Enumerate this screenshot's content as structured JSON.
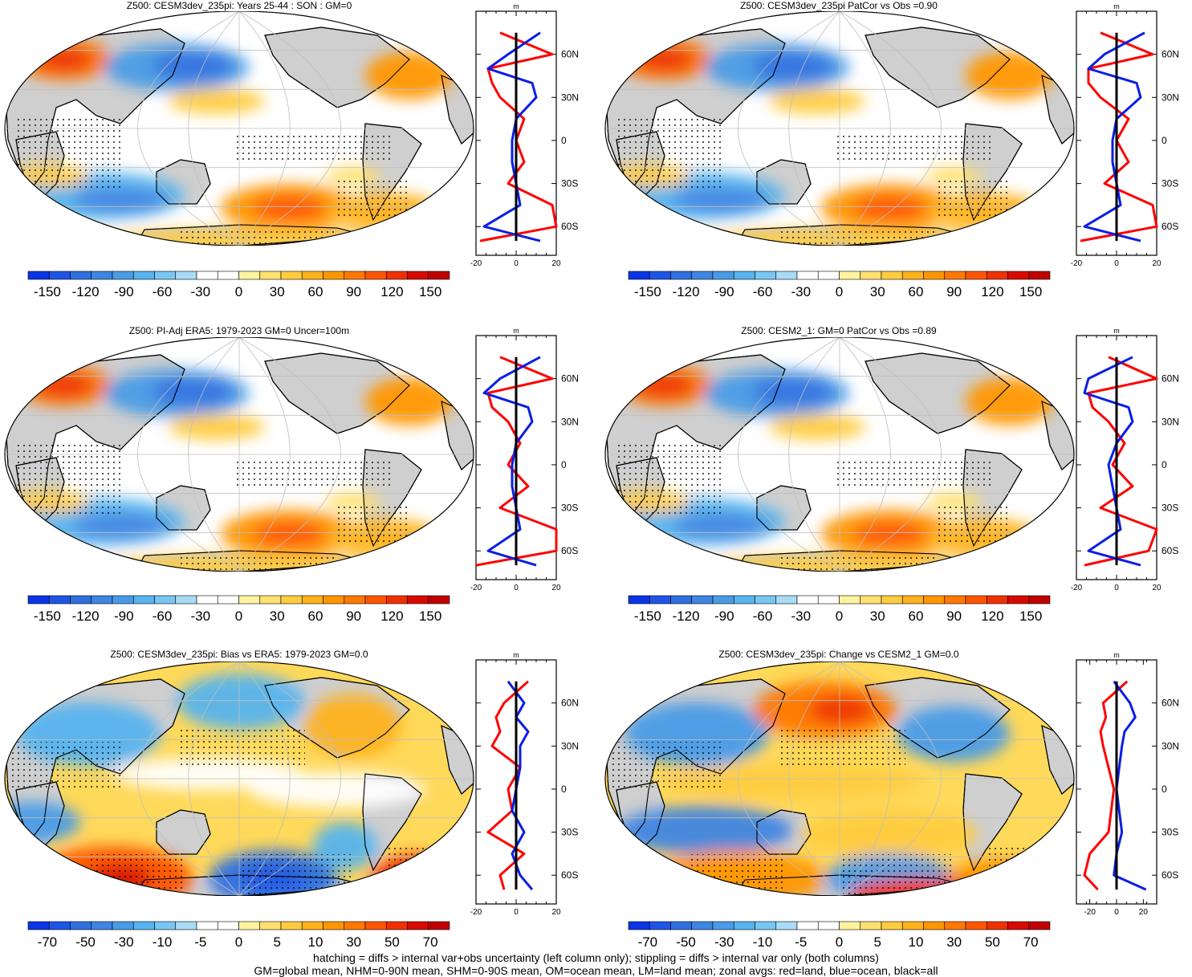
{
  "palette": {
    "diverging": [
      "#0a35e6",
      "#1f55e6",
      "#2f6fe0",
      "#3f85e2",
      "#4a9be6",
      "#57b4ee",
      "#78c6f2",
      "#a8dbf6",
      "#ffffff",
      "#ffffff",
      "#fff3a0",
      "#ffe070",
      "#ffcc40",
      "#ffb21a",
      "#ff9600",
      "#ff7800",
      "#ff5500",
      "#f03000",
      "#d80a00",
      "#c00000"
    ],
    "land": "#cfcfcf",
    "grid": "#bfbfbf",
    "zonal_land": "#ff0000",
    "zonal_ocean": "#0a1ee6",
    "zonal_all": "#000000"
  },
  "panels": [
    {
      "id": "p1",
      "title": "Z500: CESM3dev_235pi: Years 25-44 : SON : GM=0",
      "colorbar_labels": [
        "-150",
        "-120",
        "-90",
        "-60",
        "-30",
        "0",
        "30",
        "60",
        "90",
        "120",
        "150"
      ],
      "zonal": {
        "unit": "m",
        "x_ticks": [
          "-20",
          "0",
          "20"
        ],
        "y_ticks": [
          "60N",
          "30N",
          "0",
          "30S",
          "60S"
        ]
      }
    },
    {
      "id": "p2",
      "title": "Z500: CESM3dev_235pi PatCor vs Obs =0.90",
      "colorbar_labels": [
        "-150",
        "-120",
        "-90",
        "-60",
        "-30",
        "0",
        "30",
        "60",
        "90",
        "120",
        "150"
      ],
      "zonal": {
        "unit": "m",
        "x_ticks": [
          "-20",
          "0",
          "20"
        ],
        "y_ticks": [
          "60N",
          "30N",
          "0",
          "30S",
          "60S"
        ]
      }
    },
    {
      "id": "p3",
      "title": "Z500: PI-Adj ERA5: 1979-2023 GM=0 Uncer=100m",
      "colorbar_labels": [
        "-150",
        "-120",
        "-90",
        "-60",
        "-30",
        "0",
        "30",
        "60",
        "90",
        "120",
        "150"
      ],
      "zonal": {
        "unit": "m",
        "x_ticks": [
          "-20",
          "0",
          "20"
        ],
        "y_ticks": [
          "60N",
          "30N",
          "0",
          "30S",
          "60S"
        ]
      }
    },
    {
      "id": "p4",
      "title": "Z500: CESM2_1: GM=0 PatCor vs Obs =0.89",
      "colorbar_labels": [
        "-150",
        "-120",
        "-90",
        "-60",
        "-30",
        "0",
        "30",
        "60",
        "90",
        "120",
        "150"
      ],
      "zonal": {
        "unit": "m",
        "x_ticks": [
          "-20",
          "0",
          "20"
        ],
        "y_ticks": [
          "60N",
          "30N",
          "0",
          "30S",
          "60S"
        ]
      }
    },
    {
      "id": "p5",
      "title": "Z500: CESM3dev_235pi: Bias vs ERA5: 1979-2023  GM=0.0",
      "colorbar_labels": [
        "-70",
        "-50",
        "-30",
        "-10",
        "-5",
        "0",
        "5",
        "10",
        "30",
        "50",
        "70"
      ],
      "zonal": {
        "unit": "m",
        "x_ticks": [
          "-20",
          "0",
          "20"
        ],
        "y_ticks": [
          "60N",
          "30N",
          "0",
          "30S",
          "60S"
        ]
      }
    },
    {
      "id": "p6",
      "title": "Z500: CESM3dev_235pi: Change vs CESM2_1 GM=0.0",
      "colorbar_labels": [
        "-70",
        "-50",
        "-30",
        "-10",
        "-5",
        "0",
        "5",
        "10",
        "30",
        "50",
        "70"
      ],
      "zonal": {
        "unit": "m",
        "x_ticks": [
          "-20",
          "0",
          "20"
        ],
        "y_ticks": [
          "60N",
          "30N",
          "0",
          "30S",
          "60S"
        ]
      }
    }
  ],
  "chart_data": [
    {
      "type": "line",
      "title": "Z500: CESM3dev_235pi: Years 25-44 : SON : GM=0",
      "xlabel": "m",
      "xlim": [
        -20,
        20
      ],
      "ylim": [
        -80,
        90
      ],
      "lat": [
        75,
        60,
        50,
        40,
        30,
        15,
        0,
        -15,
        -30,
        -45,
        -60,
        -70
      ],
      "series": [
        {
          "name": "land",
          "values": [
            -8,
            18,
            -14,
            -12,
            -8,
            4,
            0,
            4,
            -4,
            18,
            20,
            -18
          ]
        },
        {
          "name": "ocean",
          "values": [
            12,
            -4,
            -14,
            8,
            10,
            0,
            -2,
            -2,
            0,
            2,
            -16,
            12
          ]
        },
        {
          "name": "all",
          "values": [
            0,
            0,
            0,
            0,
            0,
            0,
            0,
            0,
            0,
            0,
            0,
            0
          ]
        }
      ]
    },
    {
      "type": "line",
      "title": "Z500: CESM3dev_235pi PatCor vs Obs =0.90",
      "xlabel": "m",
      "xlim": [
        -20,
        20
      ],
      "ylim": [
        -80,
        90
      ],
      "lat": [
        75,
        60,
        50,
        40,
        30,
        15,
        0,
        -15,
        -30,
        -45,
        -60,
        -70
      ],
      "series": [
        {
          "name": "land",
          "values": [
            -8,
            18,
            -14,
            -14,
            -8,
            6,
            0,
            6,
            -6,
            18,
            20,
            -18
          ]
        },
        {
          "name": "ocean",
          "values": [
            14,
            -6,
            -14,
            10,
            12,
            0,
            -2,
            -2,
            0,
            2,
            -16,
            12
          ]
        },
        {
          "name": "all",
          "values": [
            0,
            0,
            0,
            0,
            0,
            0,
            0,
            0,
            0,
            0,
            0,
            0
          ]
        }
      ]
    },
    {
      "type": "line",
      "title": "Z500: PI-Adj ERA5: 1979-2023 GM=0 Uncer=100m",
      "xlabel": "m",
      "xlim": [
        -20,
        20
      ],
      "ylim": [
        -80,
        90
      ],
      "lat": [
        75,
        60,
        50,
        40,
        30,
        15,
        0,
        -15,
        -30,
        -45,
        -60,
        -70
      ],
      "series": [
        {
          "name": "land",
          "values": [
            -8,
            18,
            -14,
            -12,
            -4,
            2,
            -4,
            6,
            -8,
            20,
            20,
            -20
          ]
        },
        {
          "name": "ocean",
          "values": [
            12,
            -8,
            -16,
            6,
            8,
            0,
            -2,
            -2,
            0,
            2,
            -14,
            10
          ]
        },
        {
          "name": "all",
          "values": [
            0,
            0,
            0,
            0,
            0,
            0,
            0,
            0,
            0,
            0,
            0,
            0
          ]
        }
      ]
    },
    {
      "type": "line",
      "title": "Z500: CESM2_1: GM=0 PatCor vs Obs =0.89",
      "xlabel": "m",
      "xlim": [
        -20,
        20
      ],
      "ylim": [
        -80,
        90
      ],
      "lat": [
        75,
        60,
        50,
        40,
        30,
        15,
        0,
        -15,
        -30,
        -45,
        -60,
        -70
      ],
      "series": [
        {
          "name": "land",
          "values": [
            -4,
            20,
            -14,
            -12,
            -4,
            4,
            -2,
            8,
            -8,
            20,
            16,
            -16
          ]
        },
        {
          "name": "ocean",
          "values": [
            8,
            -14,
            -16,
            6,
            8,
            0,
            -4,
            -2,
            0,
            2,
            -14,
            12
          ]
        },
        {
          "name": "all",
          "values": [
            0,
            0,
            0,
            0,
            0,
            0,
            0,
            0,
            0,
            0,
            0,
            0
          ]
        }
      ]
    },
    {
      "type": "line",
      "title": "Z500: CESM3dev_235pi: Bias vs ERA5: 1979-2023  GM=0.0",
      "xlabel": "m",
      "xlim": [
        -20,
        20
      ],
      "ylim": [
        -80,
        90
      ],
      "lat": [
        75,
        60,
        50,
        40,
        30,
        15,
        0,
        -15,
        -30,
        -45,
        -60,
        -70
      ],
      "series": [
        {
          "name": "land",
          "values": [
            6,
            -6,
            -10,
            -8,
            -12,
            2,
            -4,
            -2,
            -14,
            4,
            -8,
            -6
          ]
        },
        {
          "name": "ocean",
          "values": [
            -4,
            4,
            0,
            6,
            2,
            2,
            0,
            -2,
            4,
            -2,
            2,
            8
          ]
        },
        {
          "name": "all",
          "values": [
            0,
            0,
            0,
            0,
            0,
            0,
            0,
            0,
            0,
            0,
            0,
            0
          ]
        }
      ]
    },
    {
      "type": "line",
      "title": "Z500: CESM3dev_235pi: Change vs CESM2_1 GM=0.0",
      "xlabel": "m",
      "xlim": [
        -30,
        30
      ],
      "ylim": [
        -80,
        90
      ],
      "lat": [
        75,
        60,
        50,
        40,
        30,
        15,
        0,
        -15,
        -30,
        -45,
        -60,
        -70
      ],
      "series": [
        {
          "name": "land",
          "values": [
            8,
            -10,
            -8,
            -12,
            -10,
            -6,
            -2,
            -4,
            -6,
            -20,
            -24,
            -14
          ]
        },
        {
          "name": "ocean",
          "values": [
            -2,
            10,
            14,
            6,
            4,
            2,
            0,
            2,
            4,
            0,
            -2,
            22
          ]
        },
        {
          "name": "all",
          "values": [
            0,
            0,
            0,
            0,
            0,
            0,
            0,
            0,
            0,
            0,
            0,
            0
          ]
        }
      ]
    }
  ],
  "footer": {
    "line1": "hatching = diffs > internal var+obs uncertainty (left column only); stippling = diffs > internal var only (both columns)",
    "line2": "GM=global mean, NHM=0-90N mean, SHM=0-90S mean, OM=ocean mean, LM=land mean; zonal avgs: red=land, blue=ocean, black=all"
  }
}
